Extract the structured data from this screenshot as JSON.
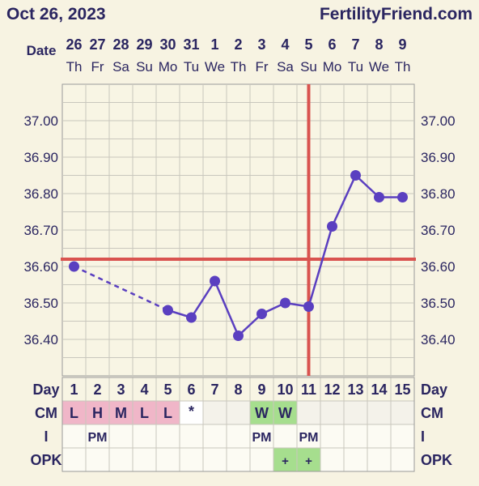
{
  "header": {
    "date": "Oct 26, 2023",
    "site": "FertilityFriend.com"
  },
  "date_row": {
    "label": "Date",
    "dates": [
      "26",
      "27",
      "28",
      "29",
      "30",
      "31",
      "1",
      "2",
      "3",
      "4",
      "5",
      "6",
      "7",
      "8",
      "9"
    ],
    "weekdays": [
      "Th",
      "Fr",
      "Sa",
      "Su",
      "Mo",
      "Tu",
      "We",
      "Th",
      "Fr",
      "Sa",
      "Su",
      "Mo",
      "Tu",
      "We",
      "Th"
    ]
  },
  "chart_data": {
    "type": "line",
    "x": [
      1,
      2,
      3,
      4,
      5,
      6,
      7,
      8,
      9,
      10,
      11,
      12,
      13,
      14,
      15
    ],
    "series": [
      {
        "values": [
          36.6,
          null,
          null,
          null,
          36.48,
          36.46,
          36.56,
          36.41,
          36.47,
          36.5,
          36.49,
          36.71,
          36.85,
          36.79,
          36.79
        ]
      }
    ],
    "y_ticks": [
      "37.00",
      "36.90",
      "36.80",
      "36.70",
      "36.60",
      "36.50",
      "36.40"
    ],
    "ylim": [
      36.31,
      37.08
    ],
    "coverline": 36.62,
    "ovulation_day": 11,
    "line_color": "#5a3fc0",
    "marker_color": "#5a3fc0",
    "coverline_color": "#d9534f",
    "grid": true
  },
  "rows": {
    "day": {
      "label": "Day",
      "values": [
        "1",
        "2",
        "3",
        "4",
        "5",
        "6",
        "7",
        "8",
        "9",
        "10",
        "11",
        "12",
        "13",
        "14",
        "15"
      ]
    },
    "cm": {
      "label": "CM",
      "values": [
        "L",
        "H",
        "M",
        "L",
        "L",
        "*",
        "",
        "",
        "W",
        "W",
        "",
        "",
        "",
        "",
        ""
      ],
      "colors": [
        "#f0b6c8",
        "#f0b6c8",
        "#f0b6c8",
        "#f0b6c8",
        "#f0b6c8",
        "#ffffff",
        "#f4f2ea",
        "#f4f2ea",
        "#a6de8e",
        "#a6de8e",
        "#f4f2ea",
        "#f4f2ea",
        "#f4f2ea",
        "#f4f2ea",
        "#f4f2ea"
      ]
    },
    "intercourse": {
      "label": "I",
      "values": [
        "",
        "PM",
        "",
        "",
        "",
        "",
        "",
        "",
        "PM",
        "",
        "PM",
        "",
        "",
        "",
        ""
      ]
    },
    "opk": {
      "label": "OPK",
      "values": [
        "",
        "",
        "",
        "",
        "",
        "",
        "",
        "",
        "",
        "+",
        "+",
        "",
        "",
        "",
        ""
      ],
      "colors": [
        "#fcfbf3",
        "#fcfbf3",
        "#fcfbf3",
        "#fcfbf3",
        "#fcfbf3",
        "#fcfbf3",
        "#fcfbf3",
        "#fcfbf3",
        "#fcfbf3",
        "#a6de8e",
        "#a6de8e",
        "#fcfbf3",
        "#fcfbf3",
        "#fcfbf3",
        "#fcfbf3"
      ]
    }
  }
}
